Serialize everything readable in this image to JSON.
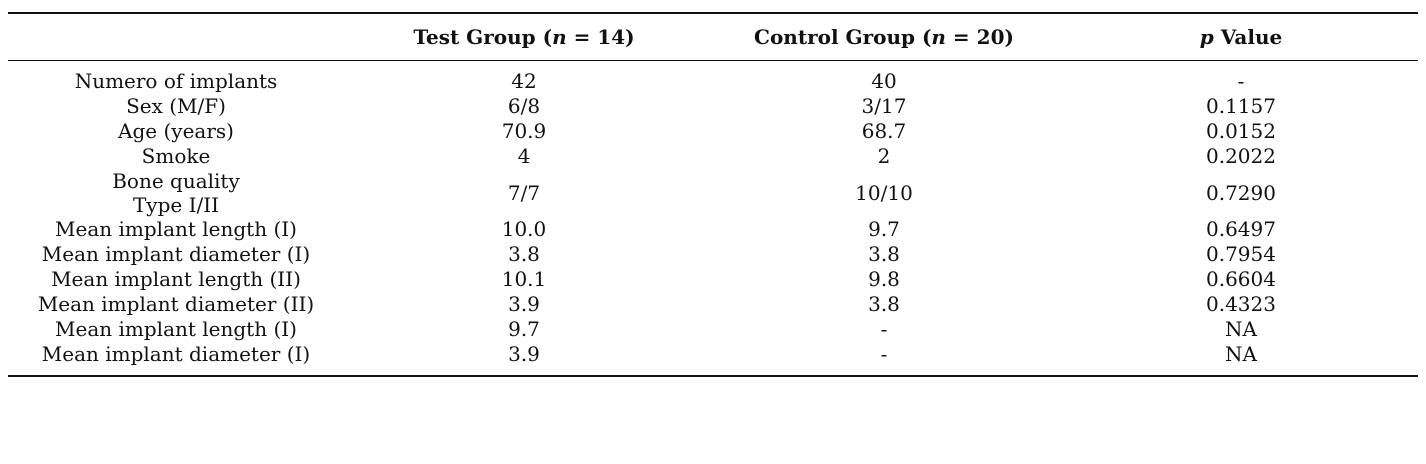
{
  "table": {
    "headers": {
      "test": {
        "prefix": "Test Group (",
        "var": "n",
        "suffix": " = 14)"
      },
      "control": {
        "prefix": "Control Group (",
        "var": "n",
        "suffix": " = 20)"
      },
      "pvalue": {
        "var": "p",
        "suffix": " Value"
      }
    },
    "rows": [
      {
        "label": "Numero of implants",
        "test": "42",
        "control": "40",
        "p": "-"
      },
      {
        "label": "Sex (M/F)",
        "test": "6/8",
        "control": "3/17",
        "p": "0.1157"
      },
      {
        "label": "Age (years)",
        "test": "70.9",
        "control": "68.7",
        "p": "0.0152"
      },
      {
        "label": "Smoke",
        "test": "4",
        "control": "2",
        "p": "0.2022"
      },
      {
        "label_line1": "Bone quality",
        "label_line2": "Type I/II",
        "test": "7/7",
        "control": "10/10",
        "p": "0.7290"
      },
      {
        "label": "Mean implant length (I)",
        "test": "10.0",
        "control": "9.7",
        "p": "0.6497"
      },
      {
        "label": "Mean implant diameter (I)",
        "test": "3.8",
        "control": "3.8",
        "p": "0.7954"
      },
      {
        "label": "Mean implant length (II)",
        "test": "10.1",
        "control": "9.8",
        "p": "0.6604"
      },
      {
        "label": "Mean implant diameter (II)",
        "test": "3.9",
        "control": "3.8",
        "p": "0.4323"
      },
      {
        "label": "Mean implant length (I)",
        "test": "9.7",
        "control": "-",
        "p": "NA"
      },
      {
        "label": "Mean implant diameter (I)",
        "test": "3.9",
        "control": "-",
        "p": "NA"
      }
    ]
  }
}
